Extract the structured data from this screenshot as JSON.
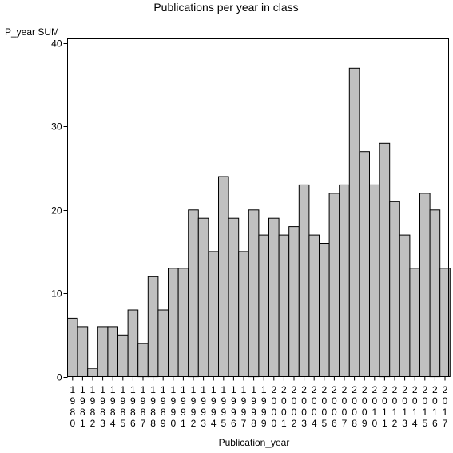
{
  "chart_data": {
    "type": "bar",
    "title": "Publications per year in class",
    "ylabel": "P_year SUM",
    "xlabel": "Publication_year",
    "ylim": [
      0,
      40
    ],
    "yticks": [
      0,
      10,
      20,
      30,
      40
    ],
    "categories": [
      "1980",
      "1981",
      "1982",
      "1983",
      "1984",
      "1985",
      "1986",
      "1987",
      "1988",
      "1989",
      "1990",
      "1991",
      "1992",
      "1993",
      "1994",
      "1995",
      "1996",
      "1997",
      "1998",
      "1999",
      "2000",
      "2001",
      "2002",
      "2003",
      "2004",
      "2005",
      "2006",
      "2007",
      "2008",
      "2009",
      "2010",
      "2011",
      "2012",
      "2013",
      "2014",
      "2015",
      "2016",
      "2017"
    ],
    "values": [
      7,
      6,
      1,
      6,
      6,
      5,
      8,
      4,
      12,
      8,
      13,
      13,
      20,
      19,
      15,
      24,
      19,
      15,
      20,
      17,
      19,
      17,
      18,
      23,
      17,
      16,
      22,
      23,
      37,
      27,
      23,
      28,
      21,
      17,
      13,
      22,
      20,
      13
    ],
    "bar_color": "#c0c0c0",
    "grid": false
  }
}
